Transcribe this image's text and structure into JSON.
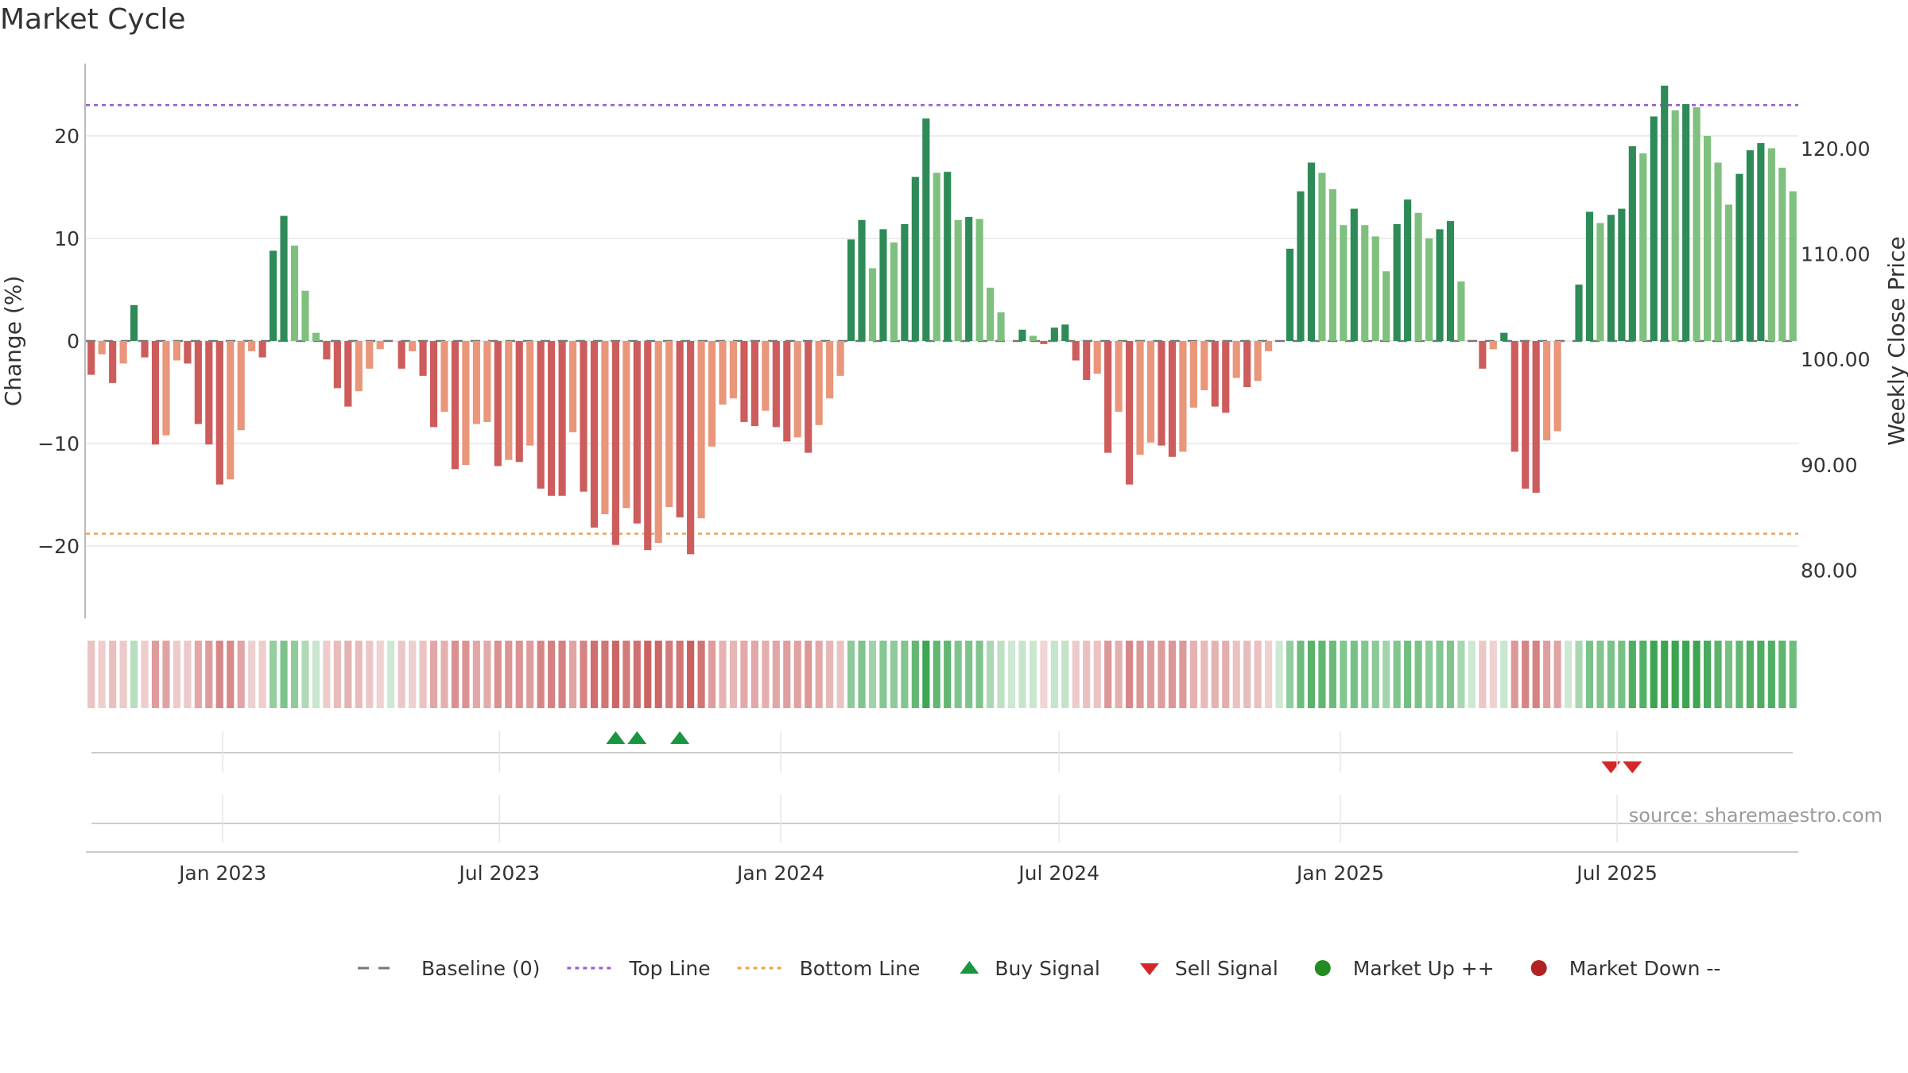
{
  "title": "Market Cycle",
  "source": "source: sharemaestro.com",
  "colors": {
    "up_strong": "#2e8b57",
    "up_light": "#7fc07f",
    "down_strong": "#cd5c5c",
    "down_light": "#e9967a",
    "top_line": "#9b59d0",
    "bottom_line": "#f0a050",
    "baseline": "#777777",
    "buy": "#1a9641",
    "sell": "#d62728",
    "market_up": "#228b22",
    "market_down": "#b22222",
    "grid": "#e6e6e6"
  },
  "chart_data": {
    "type": "bar",
    "title": "Market Cycle",
    "ylabel": "Change (%)",
    "ylabel_right": "Weekly Close Price",
    "ylim": [
      -27,
      27
    ],
    "ylim_right": [
      75.5,
      128
    ],
    "yticks": [
      20,
      10,
      0,
      -10,
      -20
    ],
    "yticks_right": [
      120,
      110,
      100,
      90,
      80
    ],
    "ytick_labels": [
      "20",
      "10",
      "0",
      "−10",
      "−20"
    ],
    "ytick_labels_right": [
      "120.00",
      "110.00",
      "100.00",
      "90.00",
      "80.00"
    ],
    "top_line": 23,
    "bottom_line": -18.8,
    "baseline": 0,
    "x_start": "2022-10-07",
    "x_step_days": 7,
    "values": [
      -3.3,
      -1.3,
      -4.1,
      -2.2,
      3.5,
      -1.6,
      -10.1,
      -9.2,
      -1.9,
      -2.2,
      -8.1,
      -10.1,
      -14.0,
      -13.5,
      -8.7,
      -1.0,
      -1.6,
      8.8,
      12.2,
      9.3,
      4.9,
      0.8,
      -1.8,
      -4.6,
      -6.4,
      -4.9,
      -2.7,
      -0.8,
      0,
      -2.7,
      -1.0,
      -3.4,
      -8.4,
      -6.9,
      -12.5,
      -12.1,
      -8.1,
      -7.9,
      -12.2,
      -11.6,
      -11.8,
      -10.2,
      -14.4,
      -15.1,
      -15.1,
      -8.9,
      -14.7,
      -18.2,
      -16.9,
      -19.9,
      -16.3,
      -17.8,
      -20.4,
      -19.7,
      -16.2,
      -17.2,
      -20.8,
      -17.3,
      -10.3,
      -6.2,
      -5.6,
      -7.9,
      -8.3,
      -6.8,
      -8.4,
      -9.8,
      -9.4,
      -10.9,
      -8.2,
      -5.6,
      -3.4,
      9.9,
      11.8,
      7.1,
      10.9,
      9.6,
      11.4,
      16.0,
      21.7,
      16.4,
      16.5,
      11.8,
      12.1,
      11.9,
      5.2,
      2.8,
      0,
      1.1,
      0.5,
      -0.3,
      1.3,
      1.6,
      -1.9,
      -3.8,
      -3.2,
      -10.9,
      -6.9,
      -14.0,
      -11.1,
      -9.9,
      -10.2,
      -11.3,
      -10.8,
      -6.5,
      -4.8,
      -6.4,
      -7.0,
      -3.6,
      -4.5,
      -3.9,
      -1.0,
      0,
      9.0,
      14.6,
      17.4,
      16.4,
      14.8,
      11.3,
      12.9,
      11.3,
      10.2,
      6.8,
      11.4,
      13.8,
      12.5,
      10.0,
      10.9,
      11.7,
      5.8,
      0,
      -2.7,
      -0.8,
      0.8,
      -10.8,
      -14.4,
      -14.8,
      -9.7,
      -8.8,
      0,
      5.5,
      12.6,
      11.5,
      12.3,
      12.9,
      19.0,
      18.3,
      21.9,
      24.9,
      22.5,
      23.1,
      22.8,
      20.0,
      17.4,
      13.3,
      16.3,
      18.6,
      19.3,
      18.8,
      16.9,
      14.6
    ],
    "x_ticks": [
      {
        "label": "Jan 2023",
        "date": "2023-01-01"
      },
      {
        "label": "Jul 2023",
        "date": "2023-07-01"
      },
      {
        "label": "Jan 2024",
        "date": "2024-01-01"
      },
      {
        "label": "Jul 2024",
        "date": "2024-07-01"
      },
      {
        "label": "Jan 2025",
        "date": "2025-01-01"
      },
      {
        "label": "Jul 2025",
        "date": "2025-07-01"
      }
    ],
    "buy_signals": [
      "2023-09-15",
      "2023-09-29",
      "2023-10-27"
    ],
    "sell_signals": [
      "2025-06-27",
      "2025-07-11"
    ],
    "legend": [
      {
        "label": "Baseline (0)",
        "symbol": "baseline"
      },
      {
        "label": "Top Line",
        "symbol": "top-line"
      },
      {
        "label": "Bottom Line",
        "symbol": "bottom-line"
      },
      {
        "label": "Buy Signal",
        "symbol": "buy"
      },
      {
        "label": "Sell Signal",
        "symbol": "sell"
      },
      {
        "label": "Market Up ++",
        "symbol": "market-up"
      },
      {
        "label": "Market Down --",
        "symbol": "market-down"
      }
    ]
  }
}
